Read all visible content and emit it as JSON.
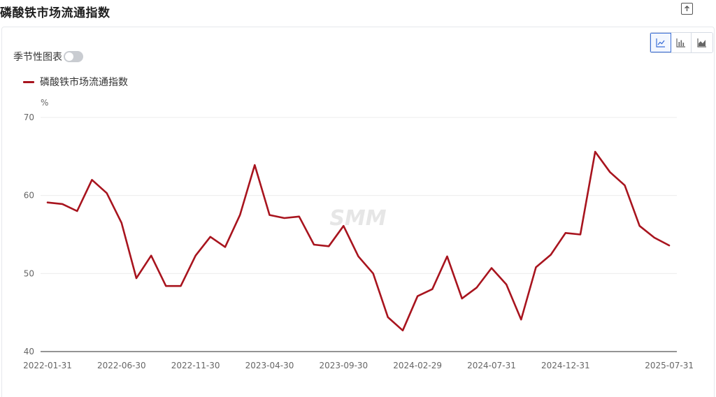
{
  "page": {
    "title": "磷酸铁市场流通指数"
  },
  "controls": {
    "seasonal_label": "季节性图表",
    "seasonal_on": false,
    "chart_types": [
      {
        "name": "line-chart",
        "active": true
      },
      {
        "name": "bar-chart",
        "active": false
      },
      {
        "name": "area-chart",
        "active": false
      }
    ]
  },
  "colors": {
    "series": "#a8141e",
    "accent": "#3b6fd6",
    "grid": "#ececec",
    "axis": "#666666",
    "watermark": "#e6e6e6"
  },
  "watermark": "SMM",
  "chart_data": {
    "type": "line",
    "title": "",
    "ylabel": "%",
    "xlabel": "",
    "ylim": [
      40,
      70
    ],
    "yticks": [
      40,
      50,
      60,
      70
    ],
    "grid": true,
    "legend_position": "top-left",
    "x_tick_labels": [
      "2022-01-31",
      "2022-06-30",
      "2022-11-30",
      "2023-04-30",
      "2023-09-30",
      "2024-02-29",
      "2024-07-31",
      "2024-12-31",
      "2025-07-31"
    ],
    "x_tick_index": [
      0,
      5,
      10,
      15,
      20,
      25,
      30,
      35,
      42
    ],
    "series": [
      {
        "name": "磷酸铁市场流通指数",
        "color": "#a8141e",
        "values": [
          59.1,
          58.9,
          58.0,
          62.0,
          60.3,
          56.5,
          49.4,
          52.3,
          48.4,
          48.4,
          52.3,
          54.7,
          53.4,
          57.5,
          63.9,
          57.5,
          57.1,
          57.3,
          53.7,
          53.5,
          56.1,
          52.2,
          50.0,
          44.4,
          42.7,
          47.1,
          48.0,
          52.2,
          46.8,
          48.2,
          50.7,
          48.6,
          44.1,
          50.8,
          52.4,
          55.2,
          55.0,
          65.6,
          63.0,
          61.3,
          56.1,
          54.6,
          53.6
        ]
      }
    ]
  }
}
